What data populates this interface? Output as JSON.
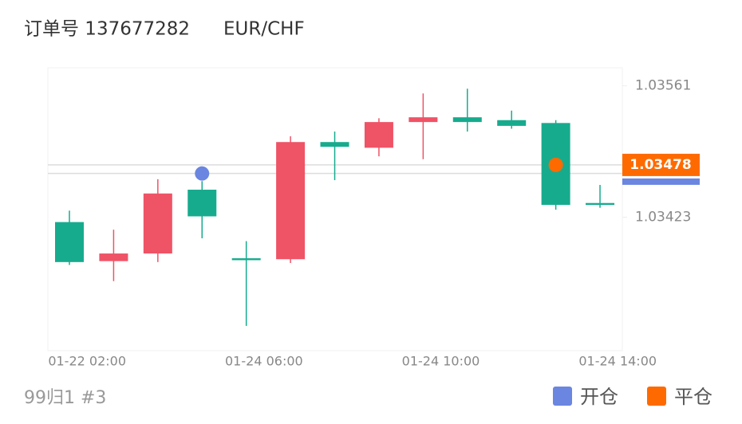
{
  "header": {
    "order_label": "订单号 137677282",
    "symbol": "EUR/CHF"
  },
  "chart_data": {
    "type": "candlestick",
    "categories": [
      "01-22 02:00",
      null,
      null,
      null,
      "01-24 06:00",
      null,
      null,
      null,
      "01-24 10:00",
      null,
      null,
      null,
      "01-24 14:00"
    ],
    "open": [
      1.03418,
      1.03377,
      1.03385,
      1.03452,
      1.0338,
      1.03379,
      1.03502,
      1.03496,
      1.03523,
      1.03528,
      1.03525,
      1.03522,
      1.03438
    ],
    "high": [
      1.0343,
      1.0341,
      1.03463,
      1.03461,
      1.03398,
      1.03508,
      1.03513,
      1.03527,
      1.03553,
      1.03558,
      1.03535,
      1.03525,
      1.03457
    ],
    "low": [
      1.03373,
      1.03356,
      1.03376,
      1.03401,
      1.03309,
      1.03375,
      1.03462,
      1.03487,
      1.03484,
      1.03513,
      1.03516,
      1.03431,
      1.03433
    ],
    "close": [
      1.03376,
      1.03385,
      1.03448,
      1.03424,
      1.03378,
      1.03502,
      1.03497,
      1.03523,
      1.03528,
      1.03523,
      1.03519,
      1.03436,
      1.03436
    ],
    "up_color": "#ef5366",
    "down_color": "#17ab8e",
    "ylim": [
      1.03283,
      1.0358
    ],
    "yticks": [
      1.03561,
      1.03423
    ],
    "markers": [
      {
        "name": "开仓",
        "color": "#6b86e0",
        "x": 3,
        "value": 1.03469
      },
      {
        "name": "平仓",
        "color": "#ff6a00",
        "x": 11,
        "value": 1.03478
      }
    ]
  },
  "footer": "99归1 #3"
}
